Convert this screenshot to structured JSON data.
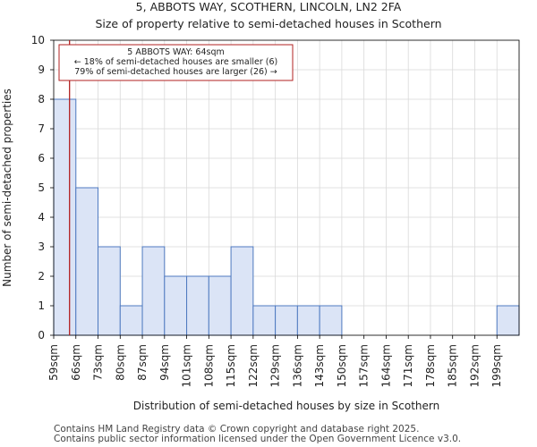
{
  "chart_data": {
    "type": "bar",
    "title": "5, ABBOTS WAY, SCOTHERN, LINCOLN, LN2 2FA",
    "subtitle": "Size of property relative to semi-detached houses in Scothern",
    "xlabel": "Distribution of semi-detached houses by size in Scothern",
    "ylabel": "Number of semi-detached properties",
    "categories": [
      "59sqm",
      "66sqm",
      "73sqm",
      "80sqm",
      "87sqm",
      "94sqm",
      "101sqm",
      "108sqm",
      "115sqm",
      "122sqm",
      "129sqm",
      "136sqm",
      "143sqm",
      "150sqm",
      "157sqm",
      "164sqm",
      "171sqm",
      "178sqm",
      "185sqm",
      "192sqm",
      "199sqm"
    ],
    "bin_edges": [
      59,
      66,
      73,
      80,
      87,
      94,
      101,
      108,
      115,
      122,
      129,
      136,
      143,
      150,
      157,
      164,
      171,
      178,
      185,
      192,
      199,
      206
    ],
    "values": [
      8,
      5,
      3,
      1,
      3,
      2,
      2,
      2,
      3,
      1,
      1,
      1,
      1,
      0,
      0,
      0,
      0,
      0,
      0,
      0,
      1
    ],
    "ylim": [
      0,
      10
    ],
    "yticks": [
      0,
      1,
      2,
      3,
      4,
      5,
      6,
      7,
      8,
      9,
      10
    ],
    "grid": true,
    "bar_color": "#dbe4f6",
    "bar_edge_color": "#4f7ac0",
    "marker": {
      "value": 64,
      "color": "#b22222",
      "label_lines": [
        "5 ABBOTS WAY: 64sqm",
        "← 18% of semi-detached houses are smaller (6)",
        "79% of semi-detached houses are larger (26) →"
      ]
    }
  },
  "footer": {
    "line1": "Contains HM Land Registry data © Crown copyright and database right 2025.",
    "line2": "Contains public sector information licensed under the Open Government Licence v3.0."
  }
}
